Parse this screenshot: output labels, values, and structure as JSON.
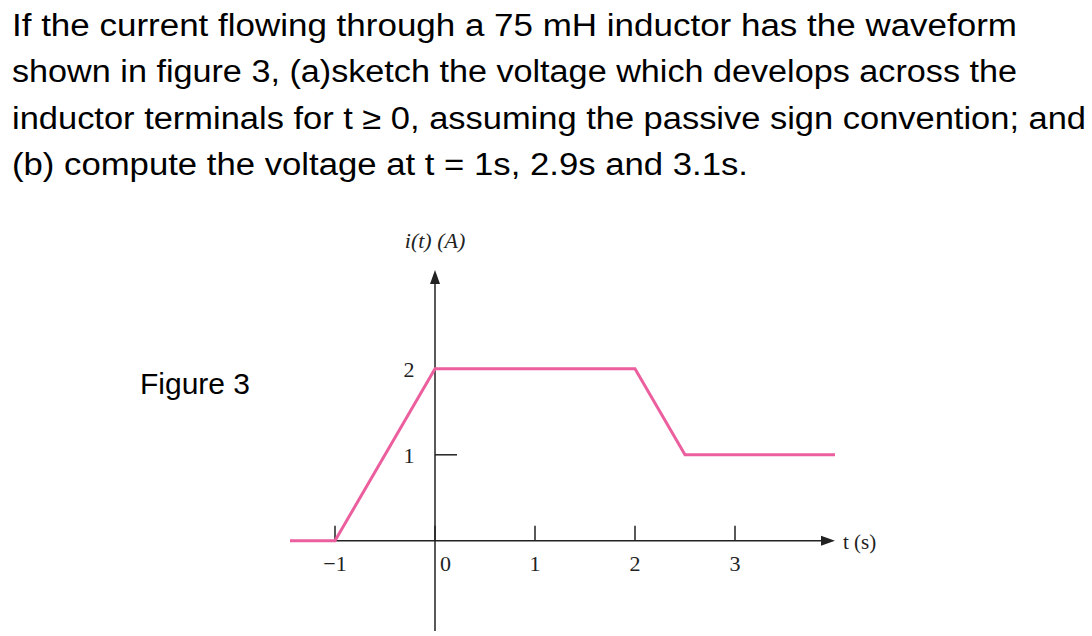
{
  "question": {
    "lines": [
      "If the current flowing through a 75 mH inductor has the waveform",
      "shown in figure 3, (a)sketch the voltage which develops across the",
      "inductor terminals for t ≥ 0, assuming the passive sign convention; and",
      "(b) compute the voltage at t = 1s, 2.9s and 3.1s."
    ],
    "figure_label": "Figure 3"
  },
  "chart_data": {
    "type": "line",
    "x_label": "t (s)",
    "y_label": "i(t) (A)",
    "x": [
      -1.45,
      -1,
      0,
      2,
      2.5,
      4
    ],
    "values": [
      0,
      0,
      2,
      2,
      1,
      1
    ],
    "color": "#ec5f9f",
    "xlim": [
      -1.45,
      4
    ],
    "ylim": [
      -1.05,
      3.15
    ],
    "xticks": [
      -1,
      0,
      1,
      2,
      3
    ],
    "yticks": [
      1,
      2
    ],
    "grid": false
  }
}
